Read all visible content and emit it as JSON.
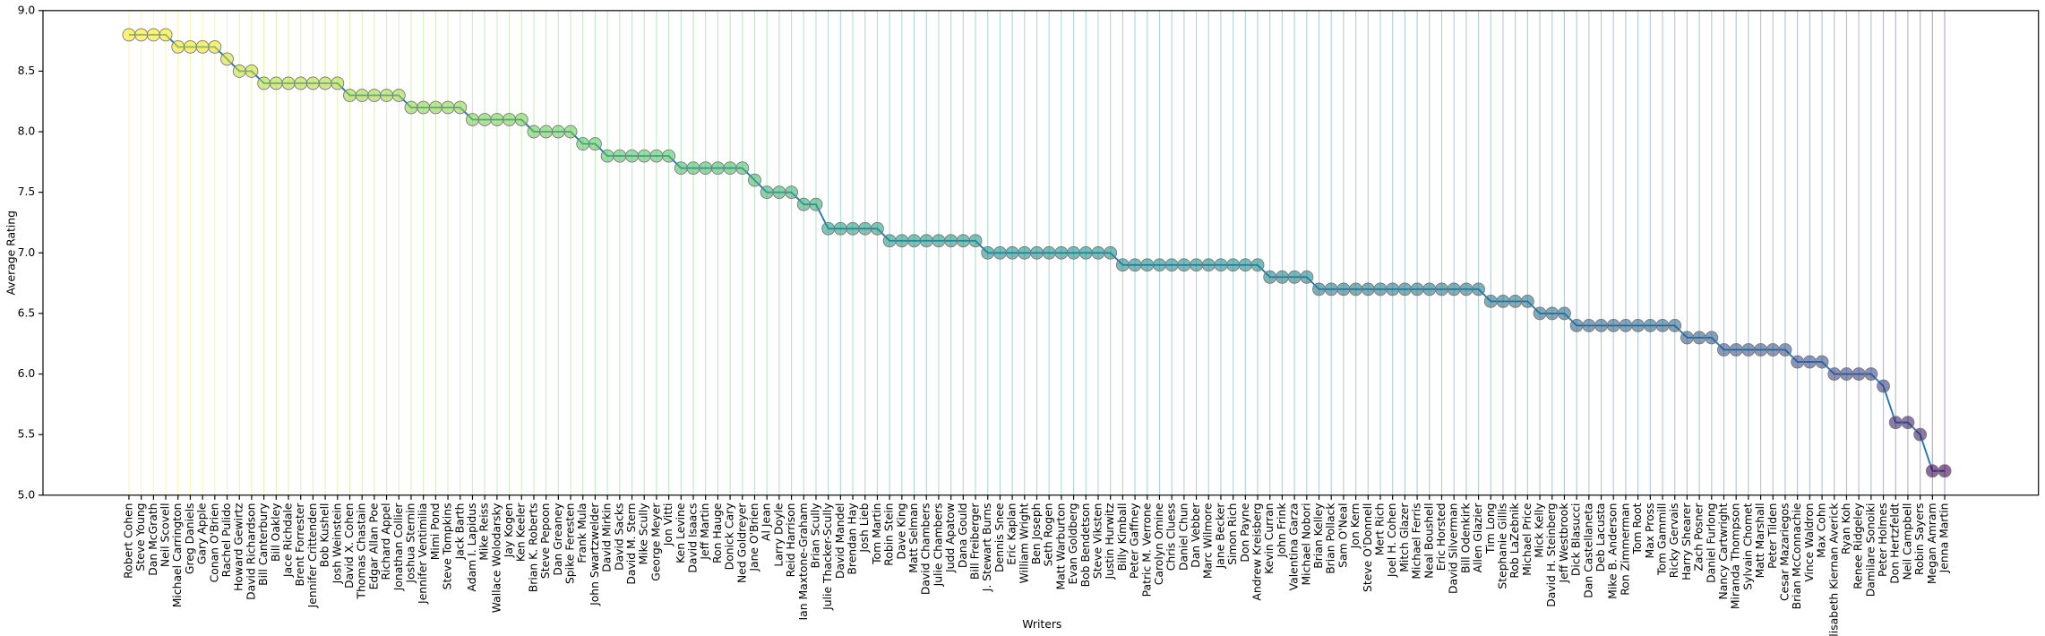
{
  "chart_data": {
    "type": "line",
    "xlabel": "Writers",
    "ylabel": "Average Rating",
    "categories": [
      "Robert Cohen",
      "Steve Young",
      "Dan McGrath",
      "Neil Scovell",
      "Michael Carrington",
      "Greg Daniels",
      "Gary Apple",
      "Conan O'Brien",
      "Rachel Pulido",
      "Howard Gewirtz",
      "David Richardson",
      "Bill Canterbury",
      "Bill Oakley",
      "Jace Richdale",
      "Brent Forrester",
      "Jennifer Crittenden",
      "Bob Kushell",
      "Josh Weinstein",
      "David X. Cohen",
      "Thomas Chastain",
      "Edgar Allan Poe",
      "Richard Appel",
      "Jonathan Collier",
      "Joshua Sternin",
      "Jennifer Ventimilia",
      "Mimi Pond",
      "Steve Tompkins",
      "Jack Barth",
      "Adam I. Lapidus",
      "Mike Reiss",
      "Wallace Wolodarsky",
      "Jay Kogen",
      "Ken Keeler",
      "Brian K. Roberts",
      "Steve Pepoon",
      "Dan Greaney",
      "Spike Feresten",
      "Frank Mula",
      "John Swartzwelder",
      "David Mirkin",
      "David Sacks",
      "David M. Stern",
      "Mike Scully",
      "George Meyer",
      "Jon Vitti",
      "Ken Levine",
      "David Isaacs",
      "Jeff Martin",
      "Ron Hauge",
      "Donick Cary",
      "Ned Goldreyer",
      "Jane O'Brien",
      "Al Jean",
      "Larry Doyle",
      "Reid Harrison",
      "Ian Maxtone-Graham",
      "Brian Scully",
      "Julie Thacker-Scully",
      "David Mandel",
      "Brendan Hay",
      "Josh Lieb",
      "Tom Martin",
      "Robin Stein",
      "Dave King",
      "Matt Selman",
      "David Chambers",
      "Julie Chambers",
      "Judd Apatow",
      "Dana Gould",
      "Bill Freiberger",
      "J. Stewart Burns",
      "Dennis Snee",
      "Eric Kaplan",
      "William Wright",
      "Ben Joseph",
      "Seth Rogen",
      "Matt Warburton",
      "Evan Goldberg",
      "Bob Bendetson",
      "Steve Viksten",
      "Justin Hurwitz",
      "Billy Kimball",
      "Peter Gaffney",
      "Patric M. Verrone",
      "Carolyn Omine",
      "Chris Cluess",
      "Daniel Chun",
      "Dan Vebber",
      "Marc Wilmore",
      "Jane Becker",
      "Simon Rich",
      "Don Payne",
      "Andrew Kreisberg",
      "Kevin Curran",
      "John Frink",
      "Valentina Garza",
      "Michael Nobori",
      "Brian Kelley",
      "Brian Pollack",
      "Sam O'Neal",
      "Jon Kern",
      "Steve O'Donnell",
      "Mert Rich",
      "Joel H. Cohen",
      "Mitch Glazer",
      "Michael Ferris",
      "Neal Boushell",
      "Eric Horsted",
      "David Silverman",
      "Bill Odenkirk",
      "Allen Glazier",
      "Tim Long",
      "Stephanie Gillis",
      "Rob LaZebnik",
      "Michael Price",
      "Mick Kelly",
      "David H. Steinberg",
      "Jeff Westbrook",
      "Dick Blasucci",
      "Dan Castellaneta",
      "Deb Lacusta",
      "Mike B. Anderson",
      "Ron Zimmerman",
      "Tom Root",
      "Max Pross",
      "Tom Gammill",
      "Ricky Gervais",
      "Harry Shearer",
      "Zach Posner",
      "Daniel Furlong",
      "Nancy Cartwright",
      "Miranda Thompson",
      "Sylvain Chomet",
      "Matt Marshall",
      "Peter Tilden",
      "Cesar Mazariegos",
      "Brian McConnachie",
      "Vince Waldron",
      "Max Cohn",
      "Elisabeth Kiernan Averick",
      "Ryan Koh",
      "Renee Ridgeley",
      "Damilare Sonoiki",
      "Peter Holmes",
      "Don Hertzfeldt",
      "Neil Campbell",
      "Robin Sayers",
      "Megan Amram",
      "Jenna Martin"
    ],
    "values": [
      8.8,
      8.8,
      8.8,
      8.8,
      8.7,
      8.7,
      8.7,
      8.7,
      8.6,
      8.5,
      8.5,
      8.4,
      8.4,
      8.4,
      8.4,
      8.4,
      8.4,
      8.4,
      8.3,
      8.3,
      8.3,
      8.3,
      8.3,
      8.2,
      8.2,
      8.2,
      8.2,
      8.2,
      8.1,
      8.1,
      8.1,
      8.1,
      8.1,
      8.0,
      8.0,
      8.0,
      8.0,
      7.9,
      7.9,
      7.8,
      7.8,
      7.8,
      7.8,
      7.8,
      7.8,
      7.7,
      7.7,
      7.7,
      7.7,
      7.7,
      7.7,
      7.6,
      7.5,
      7.5,
      7.5,
      7.4,
      7.4,
      7.2,
      7.2,
      7.2,
      7.2,
      7.2,
      7.1,
      7.1,
      7.1,
      7.1,
      7.1,
      7.1,
      7.1,
      7.1,
      7.0,
      7.0,
      7.0,
      7.0,
      7.0,
      7.0,
      7.0,
      7.0,
      7.0,
      7.0,
      7.0,
      6.9,
      6.9,
      6.9,
      6.9,
      6.9,
      6.9,
      6.9,
      6.9,
      6.9,
      6.9,
      6.9,
      6.9,
      6.8,
      6.8,
      6.8,
      6.8,
      6.7,
      6.7,
      6.7,
      6.7,
      6.7,
      6.7,
      6.7,
      6.7,
      6.7,
      6.7,
      6.7,
      6.7,
      6.7,
      6.7,
      6.6,
      6.6,
      6.6,
      6.6,
      6.5,
      6.5,
      6.5,
      6.4,
      6.4,
      6.4,
      6.4,
      6.4,
      6.4,
      6.4,
      6.4,
      6.4,
      6.3,
      6.3,
      6.3,
      6.2,
      6.2,
      6.2,
      6.2,
      6.2,
      6.2,
      6.1,
      6.1,
      6.1,
      6.0,
      6.0,
      6.0,
      6.0,
      5.9,
      5.6,
      5.6,
      5.5,
      5.2,
      5.2
    ],
    "line_color": "#1f77b4",
    "colormap": "viridis",
    "ylim": [
      5,
      9
    ],
    "yticks": [
      {
        "value": 5,
        "label": "5.0"
      },
      {
        "value": 5.5,
        "label": "5.5"
      },
      {
        "value": 6,
        "label": "6.0"
      },
      {
        "value": 6.5,
        "label": "6.5"
      },
      {
        "value": 7,
        "label": "7.0"
      },
      {
        "value": 7.5,
        "label": "7.5"
      },
      {
        "value": 8,
        "label": "8.0"
      },
      {
        "value": 8.5,
        "label": "8.5"
      },
      {
        "value": 9,
        "label": "9.0"
      }
    ],
    "grid": false
  }
}
